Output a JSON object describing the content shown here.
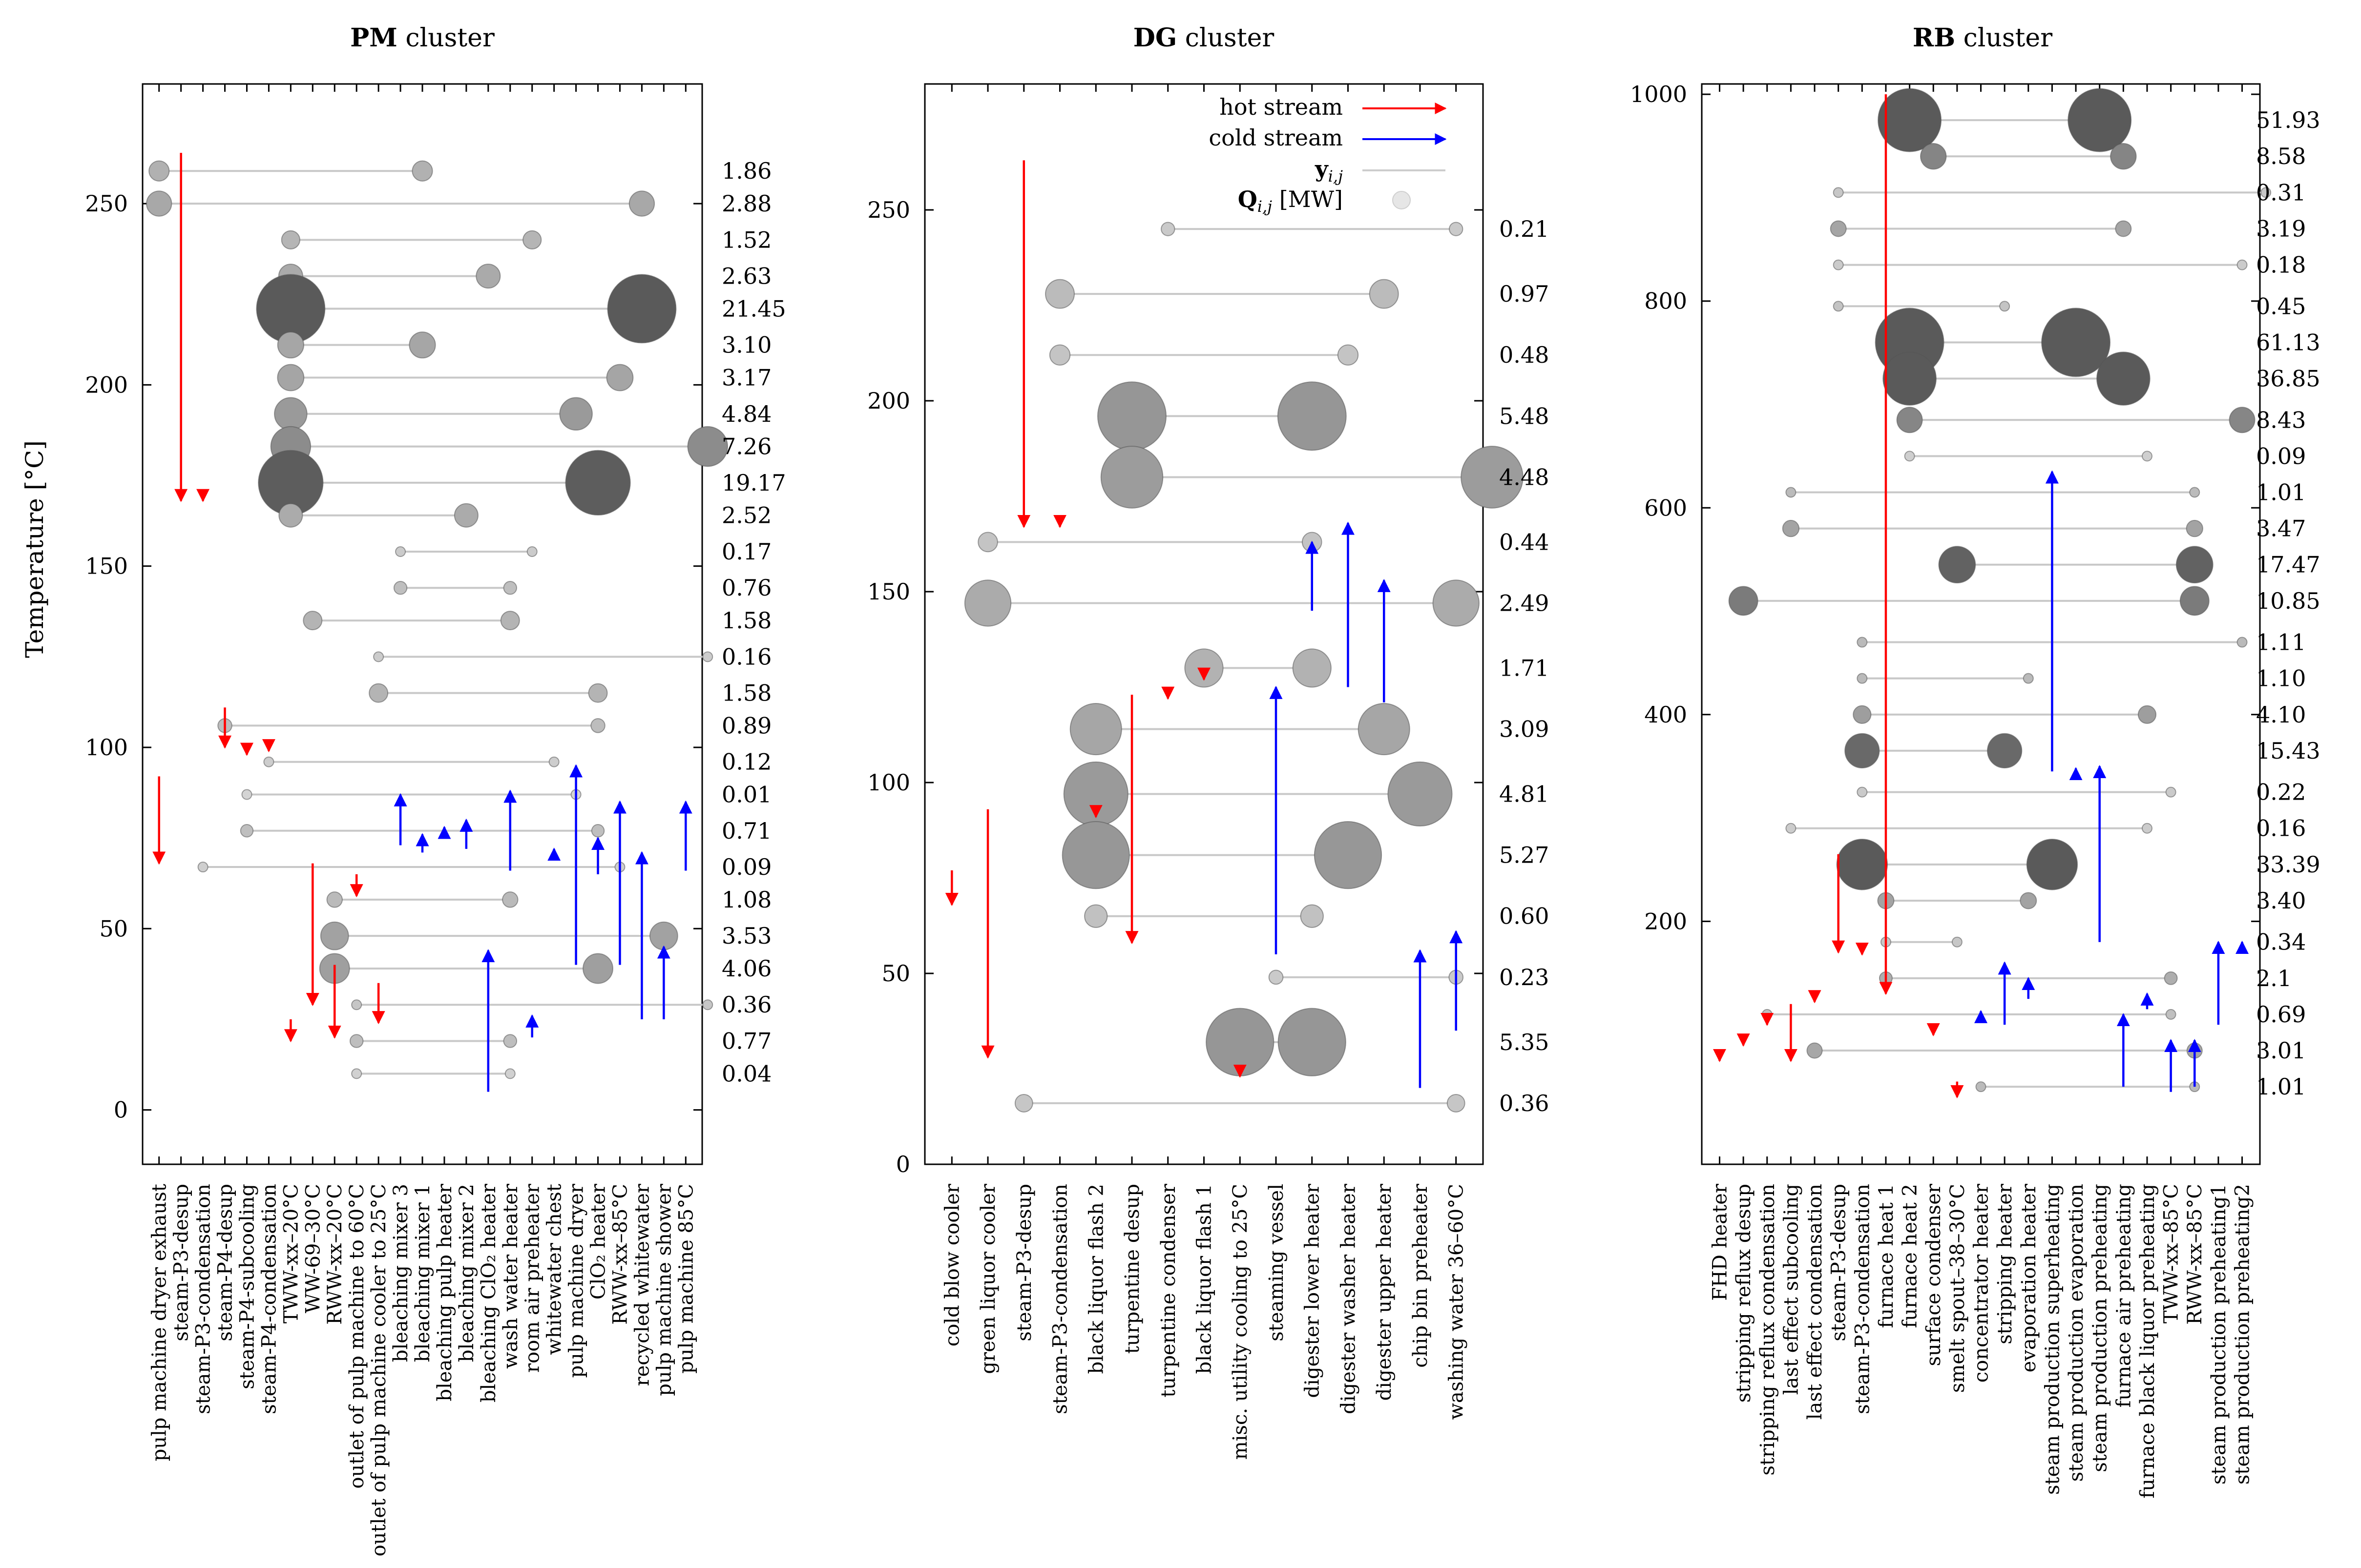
{
  "y_axis_label": "Temperature [°C]",
  "legend": {
    "hot": "hot stream",
    "cold": "cold stream",
    "y": "yi,j",
    "q": "Qi,j [MW]",
    "hot_color": "#ff0000",
    "cold_color": "#0000ff"
  },
  "chart_data": [
    {
      "type": "scatter",
      "title_bold": "PM",
      "title_rest": " cluster",
      "ylim": [
        -15,
        283
      ],
      "yticks": [
        0,
        50,
        100,
        150,
        200,
        250
      ],
      "categories": [
        "pulp machine dryer exhaust",
        "steam-P3-desup",
        "steam-P3-condensation",
        "steam-P4-desup",
        "steam-P4-subcooling",
        "steam-P4-condensation",
        "TWW-xx–20°C",
        "WW-69–30°C",
        "RWW-xx–20°C",
        "outlet of pulp machine to 60°C",
        "outlet of pulp machine cooler to 25°C",
        "bleaching mixer 3",
        "bleaching mixer 1",
        "bleaching pulp heater",
        "bleaching mixer 2",
        "bleaching ClO₂ heater",
        "wash water heater",
        "room air preheater",
        "whitewater chest",
        "pulp machine dryer",
        "ClO₂ heater",
        "RWW-xx–85°C",
        "recycled whitewater",
        "pulp machine shower",
        "pulp machine 85°C"
      ],
      "streams": [
        {
          "cat": 0,
          "from": 92,
          "to": 68,
          "kind": "hot"
        },
        {
          "cat": 1,
          "from": 264,
          "to": 168,
          "kind": "hot"
        },
        {
          "cat": 2,
          "from": 169,
          "to": 168,
          "kind": "hot"
        },
        {
          "cat": 3,
          "from": 111,
          "to": 100,
          "kind": "hot"
        },
        {
          "cat": 4,
          "from": 100,
          "to": 98,
          "kind": "hot"
        },
        {
          "cat": 5,
          "from": 100,
          "to": 99,
          "kind": "hot"
        },
        {
          "cat": 7,
          "from": 68,
          "to": 29,
          "kind": "hot"
        },
        {
          "cat": 6,
          "from": 25,
          "to": 19,
          "kind": "hot"
        },
        {
          "cat": 8,
          "from": 40,
          "to": 20,
          "kind": "hot"
        },
        {
          "cat": 9,
          "from": 65,
          "to": 59,
          "kind": "hot"
        },
        {
          "cat": 10,
          "from": 35,
          "to": 24,
          "kind": "hot"
        },
        {
          "cat": 11,
          "from": 73,
          "to": 87,
          "kind": "cold"
        },
        {
          "cat": 12,
          "from": 71,
          "to": 76,
          "kind": "cold"
        },
        {
          "cat": 13,
          "from": 75,
          "to": 78,
          "kind": "cold"
        },
        {
          "cat": 14,
          "from": 72,
          "to": 80,
          "kind": "cold"
        },
        {
          "cat": 15,
          "from": 5,
          "to": 44,
          "kind": "cold"
        },
        {
          "cat": 16,
          "from": 66,
          "to": 88,
          "kind": "cold"
        },
        {
          "cat": 17,
          "from": 20,
          "to": 26,
          "kind": "cold"
        },
        {
          "cat": 18,
          "from": 69,
          "to": 72,
          "kind": "cold"
        },
        {
          "cat": 19,
          "from": 40,
          "to": 95,
          "kind": "cold"
        },
        {
          "cat": 20,
          "from": 65,
          "to": 75,
          "kind": "cold"
        },
        {
          "cat": 21,
          "from": 40,
          "to": 85,
          "kind": "cold"
        },
        {
          "cat": 22,
          "from": 25,
          "to": 71,
          "kind": "cold"
        },
        {
          "cat": 23,
          "from": 25,
          "to": 45,
          "kind": "cold"
        },
        {
          "cat": 24,
          "from": 66,
          "to": 85,
          "kind": "cold"
        }
      ],
      "matches": [
        {
          "y": 259,
          "hot": 0,
          "cold": 12,
          "q": "1.86"
        },
        {
          "y": 250,
          "hot": 0,
          "cold": 22,
          "q": "2.88"
        },
        {
          "y": 240,
          "hot": 6,
          "cold": 17,
          "q": "1.52"
        },
        {
          "y": 230,
          "hot": 6,
          "cold": 15,
          "q": "2.63"
        },
        {
          "y": 221,
          "hot": 6,
          "cold": 22,
          "q": "21.45"
        },
        {
          "y": 211,
          "hot": 6,
          "cold": 12,
          "q": "3.10"
        },
        {
          "y": 202,
          "hot": 6,
          "cold": 21,
          "q": "3.17"
        },
        {
          "y": 192,
          "hot": 6,
          "cold": 19,
          "q": "4.84"
        },
        {
          "y": 183,
          "hot": 6,
          "cold": 25,
          "q": "7.26"
        },
        {
          "y": 173,
          "hot": 6,
          "cold": 20,
          "q": "19.17"
        },
        {
          "y": 164,
          "hot": 6,
          "cold": 14,
          "q": "2.52"
        },
        {
          "y": 154,
          "hot": 11,
          "cold": 17,
          "q": "0.17"
        },
        {
          "y": 144,
          "hot": 11,
          "cold": 16,
          "q": "0.76"
        },
        {
          "y": 135,
          "hot": 7,
          "cold": 16,
          "q": "1.58"
        },
        {
          "y": 125,
          "hot": 10,
          "cold": 25,
          "q": "0.16"
        },
        {
          "y": 115,
          "hot": 10,
          "cold": 20,
          "q": "1.58"
        },
        {
          "y": 106,
          "hot": 3,
          "cold": 20,
          "q": "0.89"
        },
        {
          "y": 96,
          "hot": 5,
          "cold": 18,
          "q": "0.12"
        },
        {
          "y": 87,
          "hot": 4,
          "cold": 19,
          "q": "0.01"
        },
        {
          "y": 77,
          "hot": 4,
          "cold": 20,
          "q": "0.71"
        },
        {
          "y": 67,
          "hot": 2,
          "cold": 21,
          "q": "0.09"
        },
        {
          "y": 58,
          "hot": 8,
          "cold": 16,
          "q": "1.08"
        },
        {
          "y": 48,
          "hot": 8,
          "cold": 23,
          "q": "3.53"
        },
        {
          "y": 39,
          "hot": 8,
          "cold": 20,
          "q": "4.06"
        },
        {
          "y": 29,
          "hot": 9,
          "cold": 25,
          "q": "0.36"
        },
        {
          "y": 19,
          "hot": 9,
          "cold": 16,
          "q": "0.77"
        },
        {
          "y": 10,
          "hot": 9,
          "cold": 16,
          "q": "0.04"
        }
      ]
    },
    {
      "type": "scatter",
      "title_bold": "DG",
      "title_rest": " cluster",
      "ylim": [
        0,
        283
      ],
      "yticks": [
        0,
        50,
        100,
        150,
        200,
        250
      ],
      "categories": [
        "cold blow cooler",
        "green liquor cooler",
        "steam-P3-desup",
        "steam-P3-condensation",
        "black liquor flash 2",
        "turpentine desup",
        "turpentine condenser",
        "black liquor flash 1",
        "misc. utility cooling to 25°C",
        "steaming vessel",
        "digester lower heater",
        "digester washer heater",
        "digester upper heater",
        "chip bin preheater",
        "washing water 36–60°C"
      ],
      "streams": [
        {
          "cat": 0,
          "from": 77,
          "to": 68,
          "kind": "hot"
        },
        {
          "cat": 1,
          "from": 93,
          "to": 28,
          "kind": "hot"
        },
        {
          "cat": 2,
          "from": 263,
          "to": 167,
          "kind": "hot"
        },
        {
          "cat": 3,
          "from": 169,
          "to": 167,
          "kind": "hot"
        },
        {
          "cat": 4,
          "from": 93,
          "to": 91,
          "kind": "hot"
        },
        {
          "cat": 5,
          "from": 123,
          "to": 58,
          "kind": "hot"
        },
        {
          "cat": 6,
          "from": 124,
          "to": 122,
          "kind": "hot"
        },
        {
          "cat": 7,
          "from": 129,
          "to": 127,
          "kind": "hot"
        },
        {
          "cat": 8,
          "from": 26,
          "to": 23,
          "kind": "hot"
        },
        {
          "cat": 9,
          "from": 55,
          "to": 125,
          "kind": "cold"
        },
        {
          "cat": 10,
          "from": 145,
          "to": 163,
          "kind": "cold"
        },
        {
          "cat": 11,
          "from": 125,
          "to": 168,
          "kind": "cold"
        },
        {
          "cat": 12,
          "from": 121,
          "to": 153,
          "kind": "cold"
        },
        {
          "cat": 13,
          "from": 20,
          "to": 56,
          "kind": "cold"
        },
        {
          "cat": 14,
          "from": 35,
          "to": 61,
          "kind": "cold"
        }
      ],
      "matches": [
        {
          "y": 245,
          "hot": 6,
          "cold": 14,
          "q": "0.21"
        },
        {
          "y": 228,
          "hot": 3,
          "cold": 12,
          "q": "0.97"
        },
        {
          "y": 212,
          "hot": 3,
          "cold": 11,
          "q": "0.48"
        },
        {
          "y": 196,
          "hot": 5,
          "cold": 10,
          "q": "5.48"
        },
        {
          "y": 180,
          "hot": 5,
          "cold": 15,
          "q": "4.48"
        },
        {
          "y": 163,
          "hot": 1,
          "cold": 10,
          "q": "0.44"
        },
        {
          "y": 147,
          "hot": 1,
          "cold": 14,
          "q": "2.49"
        },
        {
          "y": 130,
          "hot": 7,
          "cold": 10,
          "q": "1.71"
        },
        {
          "y": 114,
          "hot": 4,
          "cold": 12,
          "q": "3.09"
        },
        {
          "y": 97,
          "hot": 4,
          "cold": 13,
          "q": "4.81"
        },
        {
          "y": 81,
          "hot": 4,
          "cold": 11,
          "q": "5.27"
        },
        {
          "y": 65,
          "hot": 4,
          "cold": 10,
          "q": "0.60"
        },
        {
          "y": 49,
          "hot": 9,
          "cold": 14,
          "q": "0.23"
        },
        {
          "y": 32,
          "hot": 8,
          "cold": 10,
          "q": "5.35"
        },
        {
          "y": 16,
          "hot": 2,
          "cold": 14,
          "q": "0.36"
        }
      ]
    },
    {
      "type": "scatter",
      "title_bold": "RB",
      "title_rest": " cluster",
      "ylim": [
        -35,
        1010
      ],
      "yticks": [
        200,
        400,
        600,
        800,
        1000
      ],
      "categories": [
        "FHD heater",
        "stripping reflux desup",
        "stripping reflux condensation",
        "last effect subcooling",
        "last effect condensation",
        "steam-P3-desup",
        "steam-P3-condensation",
        "furnace heat 1",
        "furnace heat 2",
        "surface condenser",
        "smelt spout–38–30°C",
        "concentrator heater",
        "stripping heater",
        "evaporation heater",
        "steam production superheating",
        "steam production evaporation",
        "steam production preheating",
        "furnace air preheating",
        "furnace black liquor preheating",
        "TWW-xx–85°C",
        "RWW-xx–85°C",
        "steam production preheating1",
        "steam production preheating2"
      ],
      "streams": [
        {
          "cat": 0,
          "from": 70,
          "to": 65,
          "kind": "hot"
        },
        {
          "cat": 1,
          "from": 90,
          "to": 80,
          "kind": "hot"
        },
        {
          "cat": 2,
          "from": 105,
          "to": 100,
          "kind": "hot"
        },
        {
          "cat": 3,
          "from": 120,
          "to": 65,
          "kind": "hot"
        },
        {
          "cat": 4,
          "from": 125,
          "to": 122,
          "kind": "hot"
        },
        {
          "cat": 5,
          "from": 265,
          "to": 170,
          "kind": "hot"
        },
        {
          "cat": 6,
          "from": 172,
          "to": 168,
          "kind": "hot"
        },
        {
          "cat": 7,
          "from": 1000,
          "to": 130,
          "kind": "hot"
        },
        {
          "cat": 9,
          "from": 95,
          "to": 90,
          "kind": "hot"
        },
        {
          "cat": 10,
          "from": 45,
          "to": 30,
          "kind": "hot"
        },
        {
          "cat": 11,
          "from": 110,
          "to": 113,
          "kind": "cold"
        },
        {
          "cat": 12,
          "from": 100,
          "to": 160,
          "kind": "cold"
        },
        {
          "cat": 13,
          "from": 125,
          "to": 145,
          "kind": "cold"
        },
        {
          "cat": 14,
          "from": 345,
          "to": 635,
          "kind": "cold"
        },
        {
          "cat": 15,
          "from": 345,
          "to": 348,
          "kind": "cold"
        },
        {
          "cat": 16,
          "from": 180,
          "to": 350,
          "kind": "cold"
        },
        {
          "cat": 17,
          "from": 40,
          "to": 110,
          "kind": "cold"
        },
        {
          "cat": 18,
          "from": 115,
          "to": 130,
          "kind": "cold"
        },
        {
          "cat": 19,
          "from": 35,
          "to": 85,
          "kind": "cold"
        },
        {
          "cat": 20,
          "from": 40,
          "to": 85,
          "kind": "cold"
        },
        {
          "cat": 21,
          "from": 100,
          "to": 180,
          "kind": "cold"
        },
        {
          "cat": 22,
          "from": 175,
          "to": 180,
          "kind": "cold"
        }
      ],
      "matches": [
        {
          "y": 975,
          "hot": 8,
          "cold": 16,
          "q": "51.93"
        },
        {
          "y": 940,
          "hot": 9,
          "cold": 17,
          "q": "8.58"
        },
        {
          "y": 905,
          "hot": 5,
          "cold": 23,
          "q": "0.31"
        },
        {
          "y": 870,
          "hot": 5,
          "cold": 17,
          "q": "3.19"
        },
        {
          "y": 835,
          "hot": 5,
          "cold": 22,
          "q": "0.18"
        },
        {
          "y": 795,
          "hot": 5,
          "cold": 12,
          "q": "0.45"
        },
        {
          "y": 760,
          "hot": 8,
          "cold": 15,
          "q": "61.13"
        },
        {
          "y": 725,
          "hot": 8,
          "cold": 17,
          "q": "36.85"
        },
        {
          "y": 685,
          "hot": 8,
          "cold": 22,
          "q": "8.43"
        },
        {
          "y": 650,
          "hot": 8,
          "cold": 18,
          "q": "0.09"
        },
        {
          "y": 615,
          "hot": 3,
          "cold": 20,
          "q": "1.01"
        },
        {
          "y": 580,
          "hot": 3,
          "cold": 20,
          "q": "3.47"
        },
        {
          "y": 545,
          "hot": 10,
          "cold": 20,
          "q": "17.47"
        },
        {
          "y": 510,
          "hot": 1,
          "cold": 20,
          "q": "10.85"
        },
        {
          "y": 470,
          "hot": 6,
          "cold": 22,
          "q": "1.11"
        },
        {
          "y": 435,
          "hot": 6,
          "cold": 13,
          "q": "1.10"
        },
        {
          "y": 400,
          "hot": 6,
          "cold": 18,
          "q": "4.10"
        },
        {
          "y": 365,
          "hot": 6,
          "cold": 12,
          "q": "15.43"
        },
        {
          "y": 325,
          "hot": 6,
          "cold": 19,
          "q": "0.22"
        },
        {
          "y": 290,
          "hot": 3,
          "cold": 18,
          "q": "0.16"
        },
        {
          "y": 255,
          "hot": 6,
          "cold": 14,
          "q": "33.39"
        },
        {
          "y": 220,
          "hot": 7,
          "cold": 13,
          "q": "3.40"
        },
        {
          "y": 180,
          "hot": 7,
          "cold": 10,
          "q": "0.34"
        },
        {
          "y": 145,
          "hot": 7,
          "cold": 19,
          "q": "2.1"
        },
        {
          "y": 110,
          "hot": 2,
          "cold": 19,
          "q": "0.69"
        },
        {
          "y": 75,
          "hot": 4,
          "cold": 20,
          "q": "3.01"
        },
        {
          "y": 40,
          "hot": 11,
          "cold": 20,
          "q": "1.01"
        }
      ]
    }
  ]
}
